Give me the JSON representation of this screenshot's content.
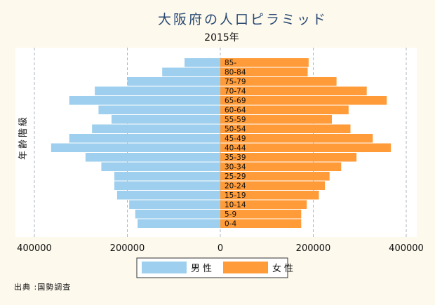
{
  "chart_data": {
    "type": "bar",
    "orientation": "horizontal-pyramid",
    "title": "大阪府の人口ピラミッド",
    "subtitle": "2015年",
    "ylabel": "年齢階級",
    "x_ticks": [
      "400000",
      "200000",
      "0",
      "200000",
      "400000"
    ],
    "xlim": [
      -400000,
      400000
    ],
    "grid": true,
    "legend_position": "bottom",
    "categories": [
      "0-4",
      "5-9",
      "10-14",
      "15-19",
      "20-24",
      "25-29",
      "30-34",
      "35-39",
      "40-44",
      "45-49",
      "50-54",
      "55-59",
      "60-64",
      "65-69",
      "70-74",
      "75-79",
      "80-84",
      "85-"
    ],
    "series": [
      {
        "name": "男性",
        "color": "#9ecfee",
        "values": [
          178000,
          183000,
          196000,
          222000,
          228000,
          228000,
          256000,
          290000,
          364000,
          325000,
          276000,
          234000,
          262000,
          325000,
          270000,
          200000,
          125000,
          77000
        ]
      },
      {
        "name": "女性",
        "color": "#ff9b38",
        "values": [
          174000,
          174000,
          186000,
          212000,
          225000,
          235000,
          260000,
          293000,
          367000,
          328000,
          280000,
          240000,
          276000,
          358000,
          315000,
          250000,
          188000,
          190000
        ]
      }
    ]
  },
  "legend": {
    "male": "男性",
    "female": "女性"
  },
  "source": "出典 :国勢調査",
  "colors": {
    "background": "#fdf9ed",
    "plot_background": "#ffffff",
    "grid": "#9aa3ad"
  }
}
